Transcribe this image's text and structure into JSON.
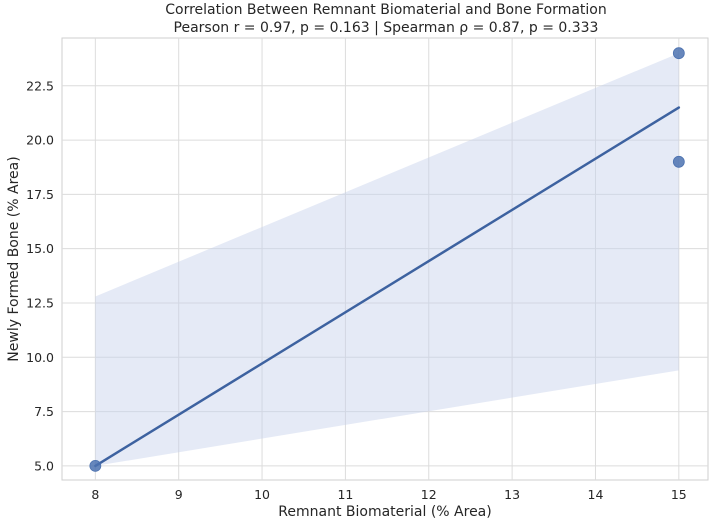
{
  "chart_data": {
    "type": "scatter",
    "title": "Correlation Between Remnant Biomaterial and Bone Formation",
    "subtitle": "Pearson r = 0.97, p = 0.163 | Spearman ρ = 0.87, p = 0.333",
    "xlabel": "Remnant Biomaterial (% Area)",
    "ylabel": "Newly Formed Bone (% Area)",
    "xlim": [
      7.6,
      15.35
    ],
    "ylim": [
      4.35,
      24.7
    ],
    "xticks": [
      "8",
      "9",
      "10",
      "11",
      "12",
      "13",
      "14",
      "15"
    ],
    "yticks": [
      "5.0",
      "7.5",
      "10.0",
      "12.5",
      "15.0",
      "17.5",
      "20.0",
      "22.5"
    ],
    "grid": true,
    "points": [
      {
        "x": 8,
        "y": 5.0
      },
      {
        "x": 15,
        "y": 24.0
      },
      {
        "x": 15,
        "y": 19.0
      }
    ],
    "regression_line": {
      "x": [
        8,
        15
      ],
      "y": [
        5.0,
        21.5
      ]
    },
    "confidence_band": {
      "x": [
        8,
        15
      ],
      "upper": [
        12.8,
        24.0
      ],
      "lower": [
        5.0,
        9.4
      ]
    },
    "colors": {
      "points": "#4c72b0",
      "line": "#3d62a0",
      "band": "#c5d1ea",
      "grid": "#dcdcdc",
      "frame": "#cfcfcf",
      "text": "#262626"
    }
  }
}
